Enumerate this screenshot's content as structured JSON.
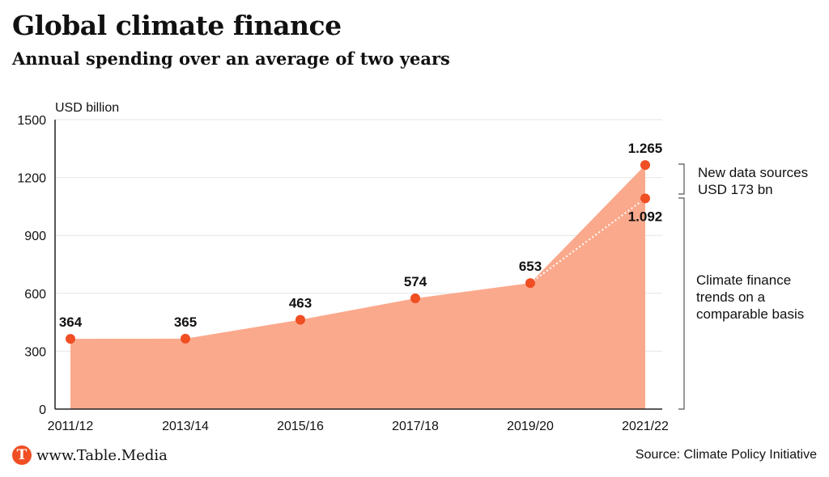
{
  "header": {
    "title": "Global climate finance",
    "subtitle": "Annual spending over an average of two years"
  },
  "footer": {
    "brand_logo_letter": "T",
    "brand_text": "www.Table.Media",
    "source": "Source: Climate Policy Initiative"
  },
  "colors": {
    "area_fill": "#fba98c",
    "marker": "#f04e23",
    "grid": "#e6e6e6",
    "axis": "#222222"
  },
  "chart_data": {
    "type": "area",
    "ylabel": "USD billion",
    "ylim": [
      0,
      1500
    ],
    "yticks": [
      "0",
      "300",
      "600",
      "900",
      "1200",
      "1500"
    ],
    "categories": [
      "2011/12",
      "2013/14",
      "2015/16",
      "2017/18",
      "2019/20",
      "2021/22"
    ],
    "series": [
      {
        "values": [
          364,
          365,
          463,
          574,
          653,
          1265
        ]
      }
    ],
    "comparable_2021_22": 1092,
    "data_labels": [
      "364",
      "365",
      "463",
      "574",
      "653",
      "1.265"
    ],
    "comparable_label": "1.092",
    "annotations": {
      "new_data": [
        "New data sources",
        "USD 173 bn"
      ],
      "comparable": [
        "Climate finance",
        "trends on a",
        "comparable basis"
      ]
    },
    "grid": true
  }
}
